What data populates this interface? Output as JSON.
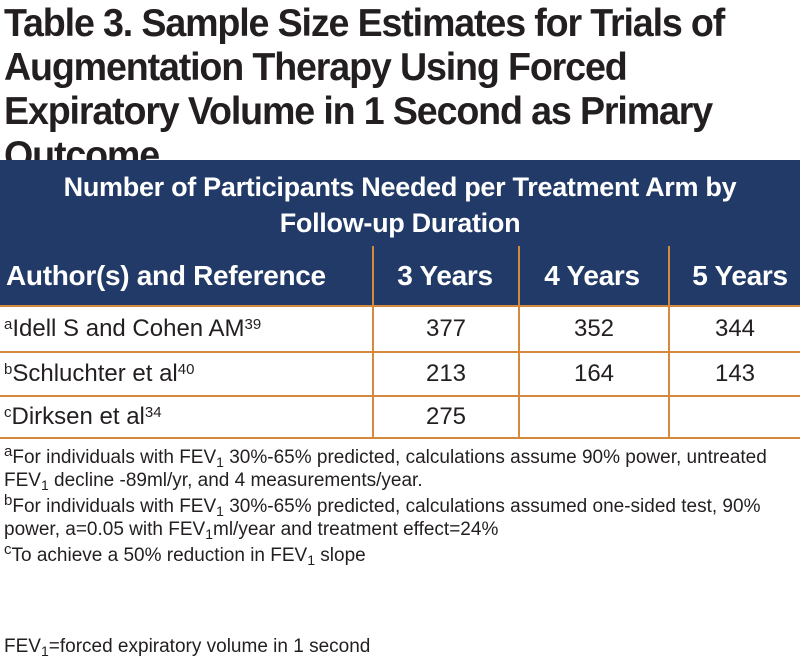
{
  "title": "Table 3. Sample Size Estimates for Trials of Augmentation Therapy Using Forced Expiratory Volume in 1 Second as Primary Outcome",
  "band": {
    "line1": "Number of Participants Needed per Treatment Arm by",
    "line2": "Follow-up Duration"
  },
  "columns": [
    "Author(s) and Reference",
    "3 Years",
    "4 Years",
    "5 Years"
  ],
  "rows": [
    {
      "mark": "a",
      "author": "Idell S and Cohen AM",
      "ref": "39",
      "y3": "377",
      "y4": "352",
      "y5": "344"
    },
    {
      "mark": "b",
      "author": "Schluchter et al",
      "ref": "40",
      "y3": "213",
      "y4": "164",
      "y5": "143"
    },
    {
      "mark": "c",
      "author": "Dirksen et al",
      "ref": "34",
      "y3": "275",
      "y4": "",
      "y5": ""
    }
  ],
  "notes": {
    "a": {
      "mark": "a",
      "p1": "For individuals with FEV",
      "sub1": "1",
      "p2": " 30%-65% predicted, calculations assume 90% power, untreated FEV",
      "sub2": "1",
      "p3": " decline -89ml/yr, and 4 measurements/year."
    },
    "b": {
      "mark": "b",
      "p1": "For individuals with FEV",
      "sub1": "1",
      "p2": " 30%-65% predicted, calculations assumed one-sided test, 90% power, a=0.05 with FEV",
      "sub2": "1",
      "p3": "ml/year and treatment effect=24%"
    },
    "c": {
      "mark": "c",
      "p1": "To achieve a 50% reduction in FEV",
      "sub1": "1",
      "p2": " slope"
    }
  },
  "footnote": {
    "p1": "FEV",
    "sub": "1",
    "p2": "=forced expiratory volume in 1 second"
  },
  "colors": {
    "header_bg": "#213a68",
    "header_text": "#ffffff",
    "rule": "#d4893e",
    "body_text": "#231f20"
  }
}
